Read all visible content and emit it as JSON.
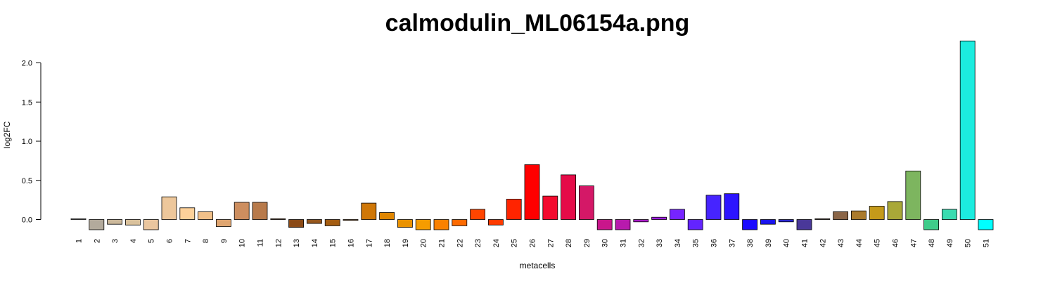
{
  "chart_data": {
    "type": "bar",
    "title": "calmodulin_ML06154a.png",
    "xlabel": "metacells",
    "ylabel": "log2FC",
    "ylim": [
      -0.13,
      2.28
    ],
    "yticks": [
      "0.0",
      "0.5",
      "1.0",
      "1.5",
      "2.0"
    ],
    "grid": false,
    "legend": "none",
    "categories": [
      "1",
      "2",
      "3",
      "4",
      "5",
      "6",
      "7",
      "8",
      "9",
      "10",
      "11",
      "12",
      "13",
      "14",
      "15",
      "16",
      "17",
      "18",
      "19",
      "20",
      "21",
      "22",
      "23",
      "24",
      "25",
      "26",
      "27",
      "28",
      "29",
      "30",
      "31",
      "32",
      "33",
      "34",
      "35",
      "36",
      "37",
      "38",
      "39",
      "40",
      "41",
      "42",
      "43",
      "44",
      "45",
      "46",
      "47",
      "48",
      "49",
      "50",
      "51"
    ],
    "values": [
      0.01,
      -0.13,
      -0.06,
      -0.07,
      -0.13,
      0.29,
      0.15,
      0.1,
      -0.09,
      0.22,
      0.22,
      0.01,
      -0.1,
      -0.05,
      -0.08,
      -0.01,
      0.21,
      0.09,
      -0.1,
      -0.13,
      -0.13,
      -0.08,
      0.13,
      -0.07,
      0.26,
      0.7,
      0.3,
      0.57,
      0.43,
      -0.13,
      -0.13,
      -0.03,
      0.03,
      0.13,
      -0.13,
      0.31,
      0.33,
      -0.13,
      -0.06,
      -0.03,
      -0.13,
      0.01,
      0.1,
      0.11,
      0.17,
      0.23,
      0.62,
      -0.13,
      0.13,
      2.28,
      -0.13
    ],
    "colors": [
      "#d4d4d4",
      "#b3aa9c",
      "#cbb89b",
      "#d9c19c",
      "#eac69f",
      "#edc79b",
      "#fdd19a",
      "#f1c089",
      "#dfa570",
      "#cd8e5f",
      "#b87a4b",
      "#8b5a2b",
      "#8b4a16",
      "#96571e",
      "#a55d11",
      "#b5661a",
      "#cf7707",
      "#e08600",
      "#ea9200",
      "#f59c00",
      "#fa8100",
      "#fd6a00",
      "#ff4500",
      "#ff3a00",
      "#ff2400",
      "#ff0000",
      "#f30a2e",
      "#e50b48",
      "#d41867",
      "#c9168b",
      "#b81aad",
      "#a81dc5",
      "#9e20df",
      "#7624ff",
      "#6324ff",
      "#4624ff",
      "#2c14ff",
      "#1a0aff",
      "#1a14ee",
      "#2c28d0",
      "#4a3899",
      "#6b513b",
      "#8b6648",
      "#aa7a2c",
      "#c49a1a",
      "#a9a838",
      "#7db55f",
      "#3fcc8a",
      "#3adcb0",
      "#1cecdf",
      "#00ffff"
    ],
    "bar_border": "#000000",
    "background": "#ffffff"
  }
}
